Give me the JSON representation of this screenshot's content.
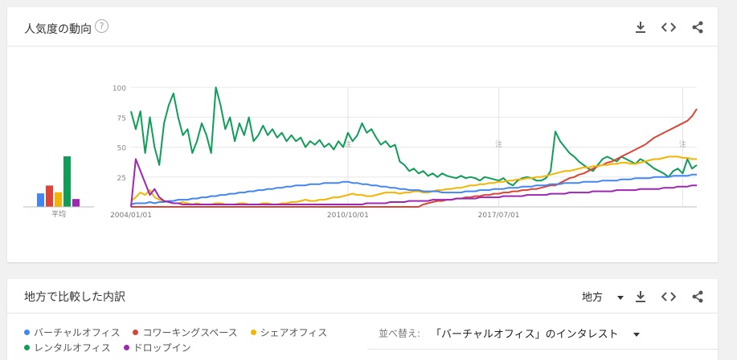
{
  "interest_card": {
    "title": "人気度の動向",
    "help_icon": "help-circle-icon",
    "actions": [
      "download-icon",
      "embed-code-icon",
      "share-icon"
    ]
  },
  "region_card": {
    "title": "地方で比較した内訳",
    "region_select": "地方",
    "sort_label": "並べ替え:",
    "sort_value": "「バーチャルオフィス」のインタレスト",
    "actions": [
      "download-icon",
      "embed-code-icon",
      "share-icon"
    ]
  },
  "legend": [
    {
      "name": "バーチャルオフィス",
      "color": "#4285f4"
    },
    {
      "name": "コワーキングスペース",
      "color": "#db4437"
    },
    {
      "name": "シェアオフィス",
      "color": "#f4b400"
    },
    {
      "name": "レンタルオフィス",
      "color": "#0f9d58"
    },
    {
      "name": "ドロップイン",
      "color": "#9c27b0"
    }
  ],
  "chart_data": {
    "type": "line",
    "average_label": "平均",
    "averages": [
      {
        "name": "バーチャルオフィス",
        "value": 12
      },
      {
        "name": "コワーキングスペース",
        "value": 19
      },
      {
        "name": "シェアオフィス",
        "value": 13
      },
      {
        "name": "レンタルオフィス",
        "value": 45
      },
      {
        "name": "ドロップイン",
        "value": 7
      }
    ],
    "x_ticks": [
      "2004/01/01",
      "2010/10/01",
      "2017/07/01"
    ],
    "y_ticks": [
      "100",
      "75",
      "50",
      "25"
    ],
    "ylim": [
      0,
      100
    ],
    "annotation_marker": "注",
    "series": [
      {
        "name": "レンタルオフィス",
        "color": "#0f9d58",
        "values": [
          80,
          65,
          80,
          45,
          75,
          50,
          35,
          70,
          85,
          95,
          75,
          60,
          65,
          45,
          55,
          70,
          60,
          45,
          100,
          85,
          65,
          75,
          55,
          70,
          60,
          75,
          55,
          60,
          68,
          60,
          65,
          58,
          62,
          55,
          60,
          55,
          58,
          50,
          55,
          52,
          56,
          50,
          53,
          48,
          55,
          50,
          62,
          55,
          60,
          70,
          62,
          65,
          58,
          52,
          55,
          50,
          52,
          38,
          35,
          30,
          32,
          28,
          30,
          26,
          28,
          25,
          28,
          26,
          25,
          24,
          26,
          24,
          25,
          24,
          22,
          25,
          24,
          23,
          22,
          24,
          20,
          18,
          22,
          24,
          25,
          24,
          22,
          22,
          24,
          30,
          63,
          55,
          50,
          45,
          42,
          38,
          35,
          32,
          30,
          35,
          40,
          42,
          40,
          38,
          42,
          40,
          38,
          36,
          40,
          38,
          35,
          32,
          30,
          28,
          25,
          30,
          32,
          28,
          40,
          32,
          35
        ]
      },
      {
        "name": "コワーキングスペース",
        "color": "#db4437",
        "values": [
          0,
          0,
          0,
          0,
          0,
          0,
          0,
          0,
          0,
          0,
          0,
          0,
          0,
          0,
          0,
          0,
          0,
          0,
          0,
          0,
          0,
          0,
          0,
          0,
          0,
          0,
          0,
          0,
          0,
          0,
          0,
          0,
          0,
          0,
          0,
          0,
          0,
          0,
          0,
          0,
          0,
          0,
          0,
          0,
          0,
          0,
          0,
          0,
          0,
          0,
          0,
          0,
          0,
          0,
          0,
          0,
          0,
          0,
          0,
          0,
          0,
          0,
          2,
          3,
          4,
          5,
          5,
          6,
          6,
          7,
          7,
          8,
          8,
          9,
          9,
          10,
          10,
          11,
          11,
          12,
          12,
          13,
          13,
          14,
          14,
          15,
          15,
          16,
          17,
          18,
          18,
          20,
          22,
          24,
          25,
          27,
          28,
          30,
          32,
          34,
          35,
          37,
          38,
          40,
          42,
          44,
          46,
          48,
          50,
          52,
          55,
          58,
          60,
          62,
          64,
          66,
          68,
          70,
          72,
          76,
          82
        ]
      },
      {
        "name": "シェアオフィス",
        "color": "#f4b400",
        "values": [
          5,
          8,
          12,
          10,
          14,
          8,
          6,
          5,
          4,
          3,
          3,
          4,
          3,
          2,
          3,
          2,
          2,
          2,
          3,
          3,
          2,
          2,
          2,
          3,
          3,
          2,
          2,
          2,
          3,
          3,
          2,
          2,
          3,
          3,
          4,
          4,
          5,
          6,
          5,
          5,
          6,
          6,
          7,
          8,
          8,
          9,
          10,
          11,
          10,
          10,
          9,
          9,
          10,
          11,
          12,
          12,
          12,
          11,
          12,
          12,
          13,
          13,
          12,
          12,
          13,
          14,
          14,
          15,
          15,
          16,
          16,
          17,
          18,
          18,
          19,
          19,
          20,
          20,
          21,
          21,
          22,
          22,
          23,
          23,
          24,
          24,
          25,
          25,
          26,
          27,
          28,
          29,
          30,
          30,
          31,
          32,
          33,
          33,
          34,
          34,
          35,
          35,
          36,
          36,
          37,
          37,
          36,
          36,
          37,
          38,
          39,
          40,
          40,
          41,
          42,
          42,
          42,
          41,
          41,
          40,
          40
        ]
      },
      {
        "name": "バーチャルオフィス",
        "color": "#4285f4",
        "values": [
          2,
          3,
          3,
          3,
          4,
          3,
          4,
          4,
          5,
          5,
          6,
          6,
          6,
          7,
          7,
          8,
          8,
          9,
          9,
          10,
          10,
          11,
          11,
          12,
          12,
          13,
          13,
          14,
          14,
          15,
          15,
          16,
          16,
          17,
          17,
          18,
          18,
          18,
          19,
          19,
          19,
          20,
          20,
          20,
          20,
          21,
          21,
          20,
          20,
          19,
          19,
          18,
          18,
          17,
          17,
          16,
          16,
          15,
          15,
          14,
          14,
          14,
          13,
          13,
          13,
          13,
          12,
          12,
          12,
          12,
          12,
          13,
          13,
          13,
          14,
          14,
          14,
          15,
          15,
          15,
          16,
          16,
          16,
          17,
          17,
          17,
          18,
          18,
          18,
          19,
          19,
          19,
          20,
          20,
          20,
          20,
          21,
          21,
          21,
          21,
          22,
          22,
          22,
          22,
          23,
          23,
          23,
          24,
          24,
          24,
          24,
          25,
          25,
          25,
          25,
          26,
          26,
          26,
          26,
          27,
          27
        ]
      },
      {
        "name": "ドロップイン",
        "color": "#9c27b0",
        "values": [
          0,
          40,
          30,
          20,
          10,
          15,
          8,
          5,
          4,
          3,
          3,
          2,
          2,
          2,
          2,
          2,
          2,
          2,
          2,
          2,
          2,
          2,
          2,
          2,
          2,
          2,
          2,
          2,
          2,
          2,
          2,
          2,
          2,
          2,
          2,
          2,
          2,
          2,
          2,
          2,
          2,
          2,
          2,
          2,
          2,
          2,
          2,
          2,
          2,
          2,
          3,
          3,
          3,
          3,
          3,
          4,
          4,
          4,
          4,
          5,
          5,
          5,
          5,
          5,
          6,
          6,
          6,
          6,
          6,
          7,
          7,
          7,
          7,
          7,
          8,
          8,
          8,
          8,
          8,
          9,
          9,
          9,
          9,
          9,
          10,
          10,
          10,
          10,
          10,
          11,
          11,
          11,
          11,
          12,
          12,
          12,
          12,
          12,
          13,
          13,
          13,
          13,
          13,
          14,
          14,
          14,
          14,
          14,
          15,
          15,
          15,
          15,
          15,
          16,
          16,
          16,
          17,
          17,
          17,
          18,
          18
        ]
      }
    ]
  }
}
